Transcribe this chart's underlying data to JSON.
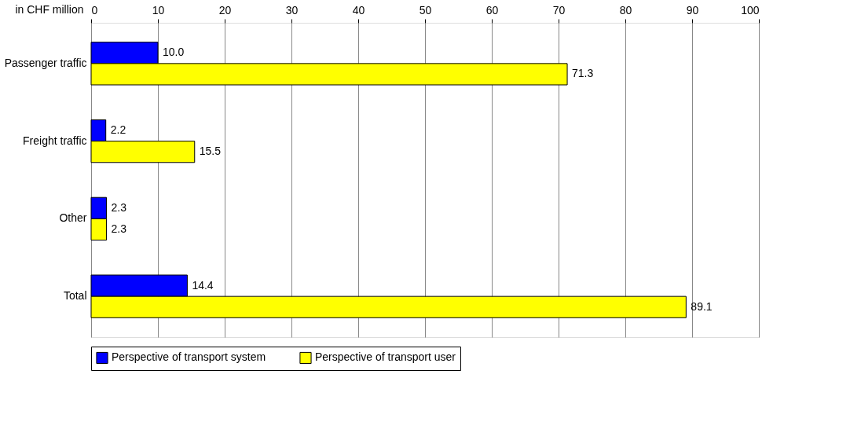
{
  "chart_data": {
    "type": "bar",
    "orientation": "horizontal",
    "xlabel": "in CHF million",
    "categories": [
      "Passenger traffic",
      "Freight traffic",
      "Other",
      "Total"
    ],
    "series": [
      {
        "name": "Perspective of transport system",
        "color": "#0000ff",
        "values": [
          10.0,
          2.2,
          2.3,
          14.4
        ],
        "value_labels": [
          "10.0",
          "2.2",
          "2.3",
          "14.4"
        ]
      },
      {
        "name": "Perspective of transport user",
        "color": "#ffff00",
        "values": [
          71.3,
          15.5,
          2.3,
          89.1
        ],
        "value_labels": [
          "71.3",
          "15.5",
          "2.3",
          "89.1"
        ]
      }
    ],
    "xlim": [
      0,
      100
    ],
    "xticks": [
      0,
      10,
      20,
      30,
      40,
      50,
      60,
      70,
      80,
      90,
      100
    ],
    "grid": "x",
    "legend": "bottom"
  }
}
